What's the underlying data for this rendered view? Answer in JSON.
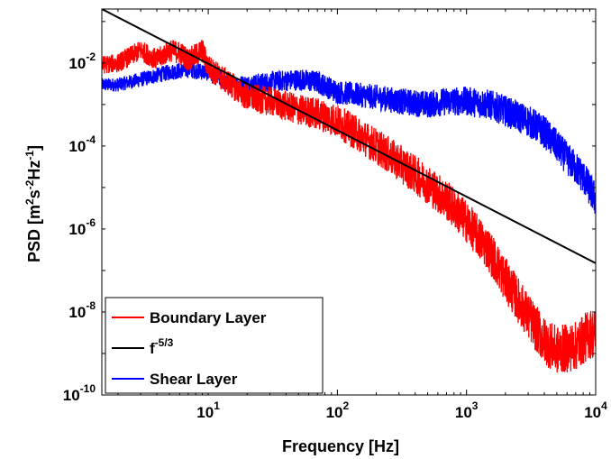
{
  "chart_data": {
    "type": "line",
    "xscale": "log",
    "yscale": "log",
    "xlim": [
      1.5,
      10000
    ],
    "ylim": [
      1e-10,
      0.2
    ],
    "xlabel": "Frequency [Hz]",
    "ylabel_parts": [
      "PSD [m",
      "2",
      "s",
      "-2",
      "Hz",
      "-1",
      "]"
    ],
    "x_ticks": [
      {
        "value": 10,
        "base": "10",
        "exp": "1"
      },
      {
        "value": 100,
        "base": "10",
        "exp": "2"
      },
      {
        "value": 1000,
        "base": "10",
        "exp": "3"
      },
      {
        "value": 10000,
        "base": "10",
        "exp": "4"
      }
    ],
    "y_ticks": [
      {
        "value": 1e-10,
        "base": "10",
        "exp": "-10"
      },
      {
        "value": 1e-08,
        "base": "10",
        "exp": "-8"
      },
      {
        "value": 1e-06,
        "base": "10",
        "exp": "-6"
      },
      {
        "value": 0.0001,
        "base": "10",
        "exp": "-4"
      },
      {
        "value": 0.01,
        "base": "10",
        "exp": "-2"
      }
    ],
    "grid": false,
    "legend_position": "bottom-left",
    "series": [
      {
        "name": "Boundary Layer",
        "color": "#ff0000",
        "noise": 0.22,
        "noise_growth": 0.6,
        "x": [
          1.5,
          2,
          3,
          4,
          5,
          6,
          7,
          8,
          9,
          10,
          12,
          15,
          20,
          30,
          50,
          70,
          100,
          150,
          200,
          300,
          500,
          700,
          1000,
          1500,
          2000,
          3000,
          4000,
          5000,
          7000,
          9000,
          10000
        ],
        "y": [
          0.009,
          0.01,
          0.02,
          0.012,
          0.02,
          0.018,
          0.012,
          0.015,
          0.02,
          0.008,
          0.005,
          0.003,
          0.0015,
          0.0012,
          0.00075,
          0.0006,
          0.0004,
          0.00018,
          0.0001,
          4e-05,
          1.2e-05,
          5e-06,
          1.5e-06,
          3e-07,
          6e-08,
          8e-09,
          2e-09,
          1.2e-09,
          1.5e-09,
          3e-09,
          3e-09
        ]
      },
      {
        "name": "f^-5/3",
        "label_base": "f",
        "label_exp": "-5/3",
        "color": "#000000",
        "noise": 0,
        "noise_growth": 0,
        "x": [
          1.5,
          10000
        ],
        "y": [
          0.2,
          1.5e-07
        ]
      },
      {
        "name": "Shear Layer",
        "color": "#0000ff",
        "noise": 0.16,
        "noise_growth": 0.55,
        "x": [
          1.5,
          2,
          3,
          5,
          7,
          10,
          15,
          20,
          30,
          50,
          70,
          100,
          200,
          300,
          500,
          700,
          1000,
          1500,
          2000,
          3000,
          4000,
          5000,
          6000,
          7000,
          8000,
          10000
        ],
        "y": [
          0.003,
          0.003,
          0.004,
          0.006,
          0.007,
          0.006,
          0.003,
          0.003,
          0.0035,
          0.004,
          0.0035,
          0.002,
          0.0015,
          0.0012,
          0.001,
          0.0012,
          0.0012,
          0.001,
          0.0007,
          0.0004,
          0.00022,
          0.0001,
          5e-05,
          3e-05,
          1.8e-05,
          5e-06
        ]
      }
    ]
  }
}
